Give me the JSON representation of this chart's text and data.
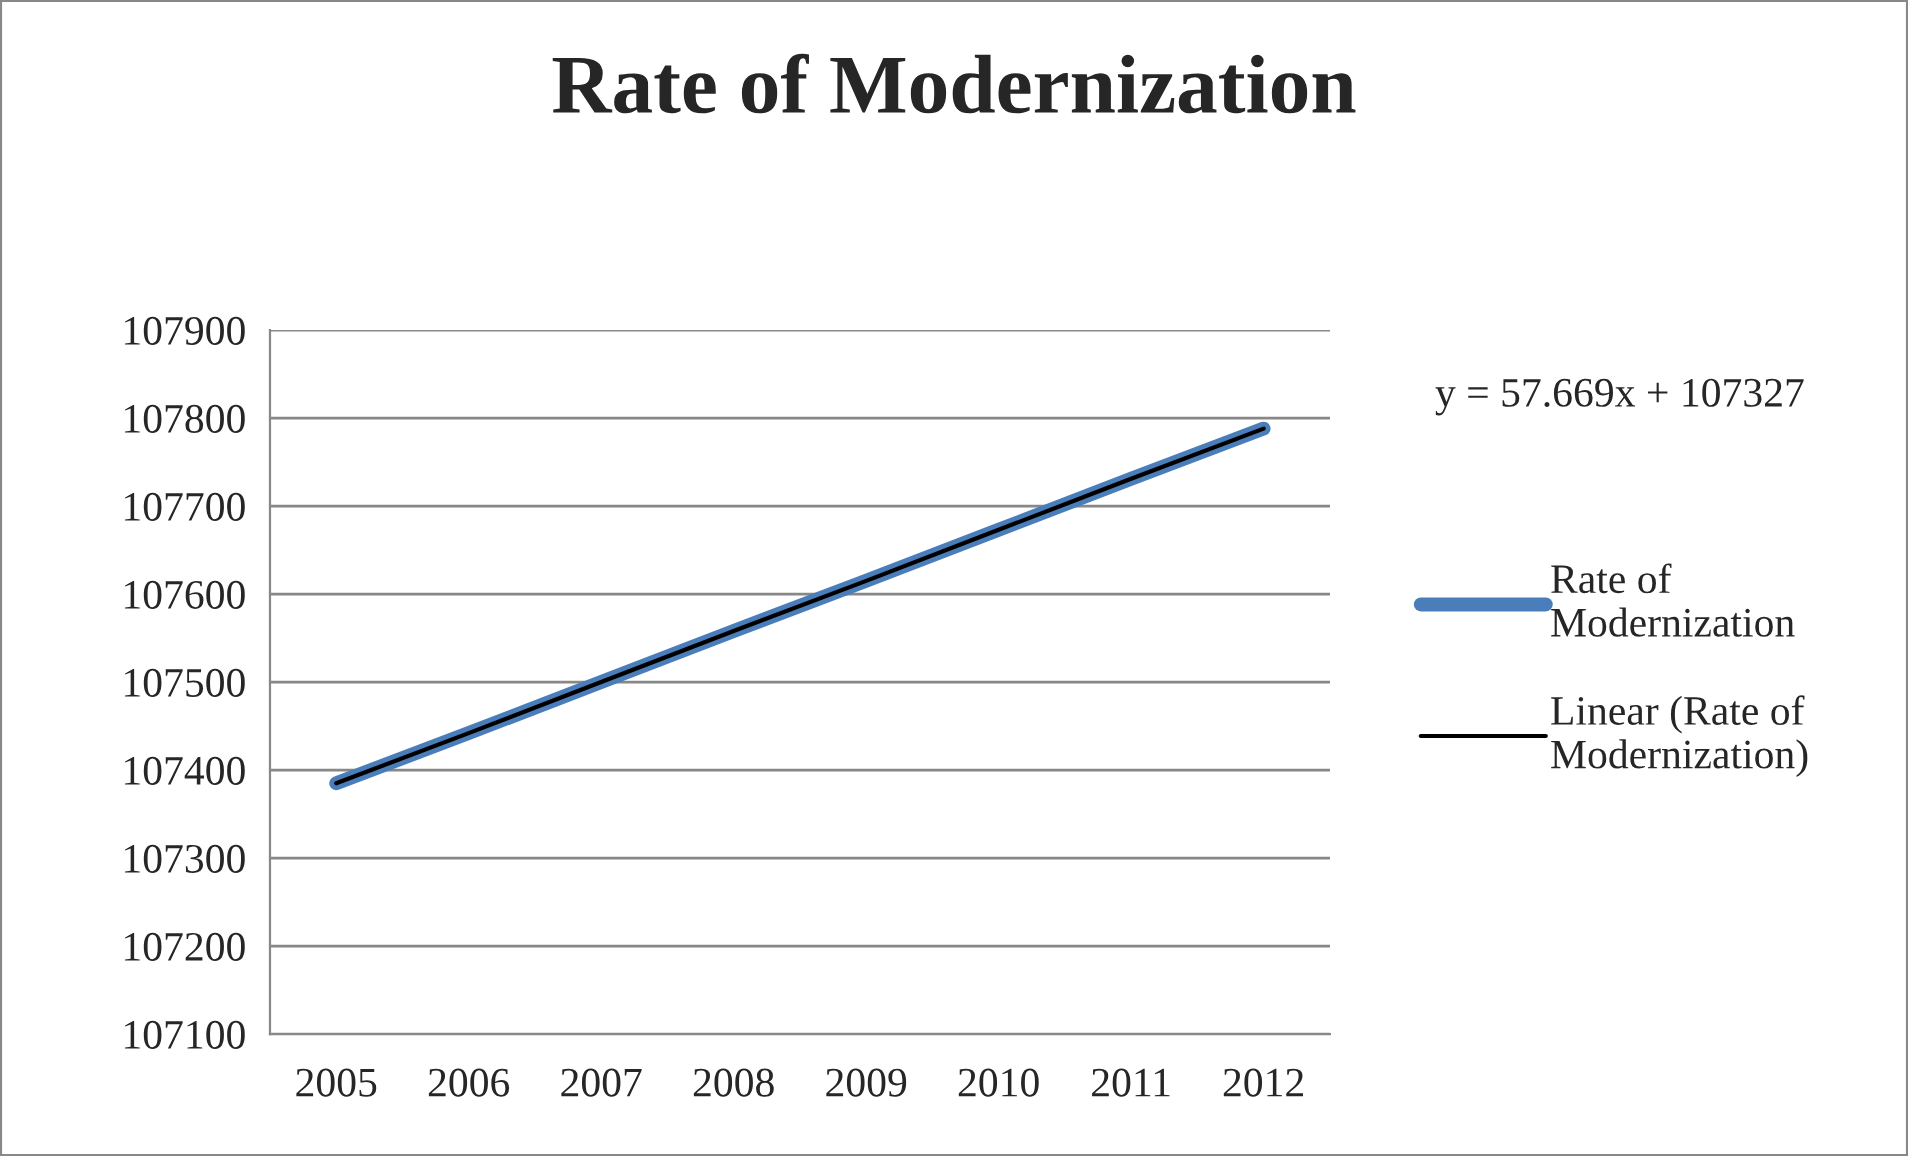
{
  "chart_data": {
    "type": "line",
    "title": "Rate of Modernization",
    "categories": [
      "2005",
      "2006",
      "2007",
      "2008",
      "2009",
      "2010",
      "2011",
      "2012"
    ],
    "series": [
      {
        "name": "Rate of Modernization",
        "color": "#4a7ebb",
        "values": [
          107385,
          107442,
          107500,
          107558,
          107615,
          107673,
          107731,
          107788
        ]
      },
      {
        "name": "Linear (Rate of Modernization)",
        "color": "#000000",
        "values": [
          107385,
          107442,
          107500,
          107558,
          107615,
          107673,
          107731,
          107788
        ]
      }
    ],
    "ylim": [
      107100,
      107900
    ],
    "yticks": [
      107100,
      107200,
      107300,
      107400,
      107500,
      107600,
      107700,
      107800,
      107900
    ],
    "grid": "y",
    "legend": "right",
    "marker": "none",
    "line_style": "solid",
    "annotations": [
      "y = 57.669x + 107327"
    ]
  }
}
